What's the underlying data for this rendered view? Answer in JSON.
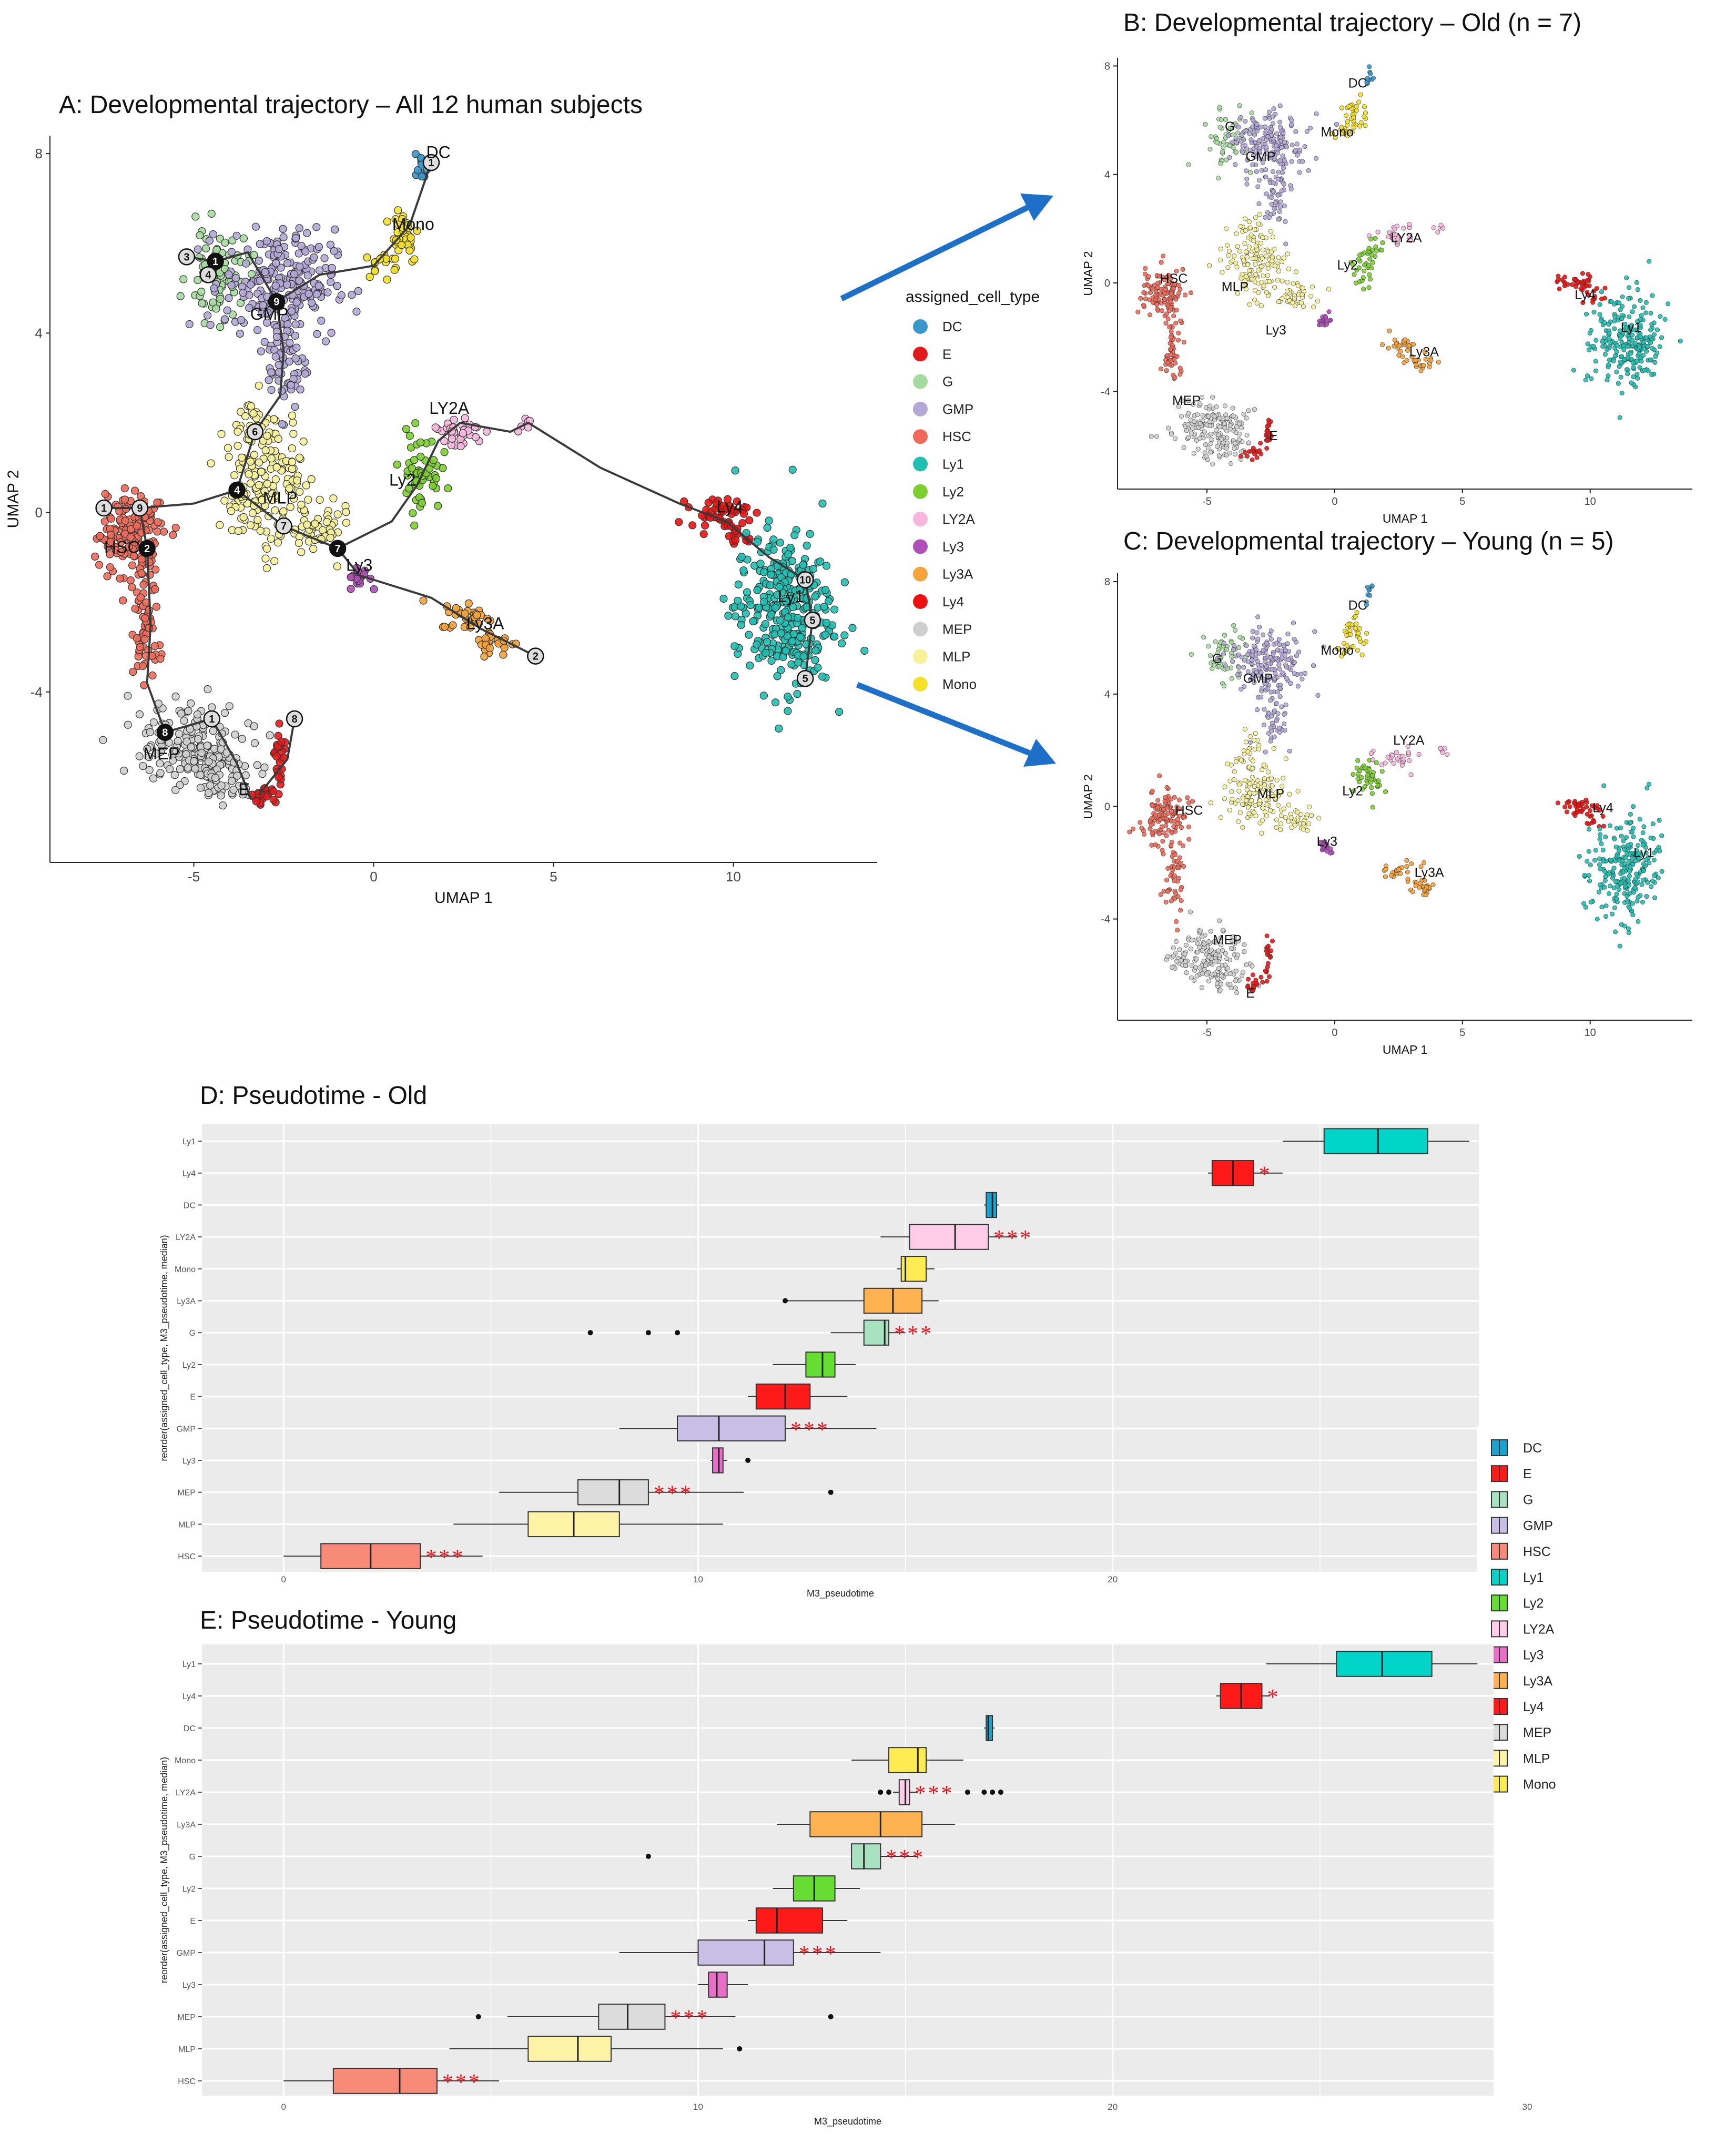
{
  "colors": {
    "DC": "#3a97c9",
    "E": "#e31a1c",
    "G": "#a6dba0",
    "GMP": "#b3a8d6",
    "HSC": "#ef6a5a",
    "Ly1": "#21bfb2",
    "Ly2": "#7ccf2e",
    "LY2A": "#f7b6dd",
    "Ly3": "#b04fb8",
    "Ly3A": "#f5a33b",
    "Ly4": "#ee1111",
    "MEP": "#cfcfcf",
    "MLP": "#f7f29a",
    "Mono": "#f5e02a"
  },
  "box_colors": {
    "DC": "#1aa3d0",
    "E": "#ff1a1a",
    "G": "#a8e2c0",
    "GMP": "#c9bfe6",
    "HSC": "#f88a7a",
    "Ly1": "#00d4c8",
    "Ly2": "#66dd33",
    "LY2A": "#ffcde8",
    "Ly3": "#e86ec8",
    "Ly3A": "#ffb252",
    "Ly4": "#ff1a1a",
    "MEP": "#dcdcdc",
    "MLP": "#fff3a8",
    "Mono": "#ffec52"
  },
  "chart_data": [
    {
      "id": "A",
      "type": "scatter",
      "title": "A: Developmental trajectory – All 12 human subjects",
      "xlabel": "UMAP 1",
      "ylabel": "UMAP 2",
      "xlim": [
        -9,
        14
      ],
      "ylim": [
        -7.8,
        8.4
      ],
      "xticks": [
        -5,
        0,
        5,
        10
      ],
      "yticks": [
        -4,
        0,
        4,
        8
      ],
      "legend_title": "assigned_cell_type",
      "legend": [
        "DC",
        "E",
        "G",
        "GMP",
        "HSC",
        "Ly1",
        "Ly2",
        "LY2A",
        "Ly3",
        "Ly3A",
        "Ly4",
        "MEP",
        "MLP",
        "Mono"
      ],
      "cluster_labels": [
        {
          "text": "DC",
          "x": 1.8,
          "y": 7.9
        },
        {
          "text": "Mono",
          "x": 1.1,
          "y": 6.3
        },
        {
          "text": "GMP",
          "x": -2.9,
          "y": 4.3
        },
        {
          "text": "LY2A",
          "x": 2.1,
          "y": 2.2
        },
        {
          "text": "Ly2",
          "x": 0.8,
          "y": 0.6
        },
        {
          "text": "MLP",
          "x": -2.6,
          "y": 0.2
        },
        {
          "text": "Ly4",
          "x": 9.9,
          "y": 0.0
        },
        {
          "text": "Ly3",
          "x": -0.4,
          "y": -1.3
        },
        {
          "text": "Ly3A",
          "x": 3.1,
          "y": -2.6
        },
        {
          "text": "Ly1",
          "x": 11.6,
          "y": -2.0
        },
        {
          "text": "HSC",
          "x": -7.0,
          "y": -0.9
        },
        {
          "text": "MEP",
          "x": -5.9,
          "y": -5.5
        },
        {
          "text": "E",
          "x": -3.6,
          "y": -6.3
        }
      ],
      "trajectory_nodes": [
        {
          "label": "1",
          "x": -4.4,
          "y": 5.6,
          "filled": true
        },
        {
          "label": "3",
          "x": -5.2,
          "y": 5.7,
          "filled": false
        },
        {
          "label": "9",
          "x": -2.7,
          "y": 4.7,
          "filled": true
        },
        {
          "label": "4",
          "x": -4.6,
          "y": 5.3,
          "filled": false
        },
        {
          "label": "6",
          "x": -3.3,
          "y": 1.8,
          "filled": false
        },
        {
          "label": "4",
          "x": -3.8,
          "y": 0.5,
          "filled": true
        },
        {
          "label": "7",
          "x": -2.5,
          "y": -0.3,
          "filled": false
        },
        {
          "label": "7",
          "x": -1.0,
          "y": -0.8,
          "filled": true
        },
        {
          "label": "1",
          "x": -7.5,
          "y": 0.1,
          "filled": false
        },
        {
          "label": "9",
          "x": -6.5,
          "y": 0.1,
          "filled": false
        },
        {
          "label": "2",
          "x": -6.3,
          "y": -0.8,
          "filled": true
        },
        {
          "label": "10",
          "x": 12.0,
          "y": -1.5,
          "filled": false
        },
        {
          "label": "5",
          "x": 12.2,
          "y": -2.4,
          "filled": false
        },
        {
          "label": "5",
          "x": 12.0,
          "y": -3.7,
          "filled": false
        },
        {
          "label": "2",
          "x": 4.5,
          "y": -3.2,
          "filled": false
        },
        {
          "label": "1",
          "x": -4.5,
          "y": -4.6,
          "filled": false
        },
        {
          "label": "8",
          "x": -5.8,
          "y": -4.9,
          "filled": true
        },
        {
          "label": "8",
          "x": -2.2,
          "y": -4.6,
          "filled": false
        },
        {
          "label": "1",
          "x": 1.6,
          "y": 7.8,
          "filled": false
        }
      ]
    },
    {
      "id": "B",
      "type": "scatter",
      "title": "B: Developmental trajectory – Old (n = 7)",
      "xlabel": "UMAP 1",
      "ylabel": "UMAP 2",
      "xlim": [
        -8.5,
        14
      ],
      "ylim": [
        -7.6,
        8.3
      ],
      "xticks": [
        -5,
        0,
        5,
        10
      ],
      "yticks": [
        -4,
        0,
        4,
        8
      ],
      "cluster_labels": [
        {
          "text": "DC",
          "x": 0.9,
          "y": 7.2
        },
        {
          "text": "Mono",
          "x": 0.1,
          "y": 5.4
        },
        {
          "text": "G",
          "x": -4.1,
          "y": 5.6
        },
        {
          "text": "GMP",
          "x": -2.9,
          "y": 4.5
        },
        {
          "text": "LY2A",
          "x": 2.8,
          "y": 1.5
        },
        {
          "text": "Ly2",
          "x": 0.5,
          "y": 0.5
        },
        {
          "text": "HSC",
          "x": -6.3,
          "y": 0.0
        },
        {
          "text": "MLP",
          "x": -3.9,
          "y": -0.3
        },
        {
          "text": "Ly3",
          "x": -2.3,
          "y": -1.9
        },
        {
          "text": "Ly3A",
          "x": 3.5,
          "y": -2.7
        },
        {
          "text": "Ly4",
          "x": 9.8,
          "y": -0.6
        },
        {
          "text": "Ly1",
          "x": 11.6,
          "y": -1.8
        },
        {
          "text": "MEP",
          "x": -5.8,
          "y": -4.5
        },
        {
          "text": "E",
          "x": -2.4,
          "y": -5.8
        }
      ]
    },
    {
      "id": "C",
      "type": "scatter",
      "title": "C: Developmental trajectory – Young (n = 5)",
      "xlabel": "UMAP 1",
      "ylabel": "UMAP 2",
      "xlim": [
        -8.5,
        14
      ],
      "ylim": [
        -7.6,
        8.3
      ],
      "xticks": [
        -5,
        0,
        5,
        10
      ],
      "yticks": [
        -4,
        0,
        4,
        8
      ],
      "cluster_labels": [
        {
          "text": "DC",
          "x": 0.9,
          "y": 7.0
        },
        {
          "text": "Mono",
          "x": 0.1,
          "y": 5.4
        },
        {
          "text": "G",
          "x": -4.6,
          "y": 5.1
        },
        {
          "text": "GMP",
          "x": -3.0,
          "y": 4.4
        },
        {
          "text": "LY2A",
          "x": 2.9,
          "y": 2.2
        },
        {
          "text": "Ly2",
          "x": 0.7,
          "y": 0.4
        },
        {
          "text": "HSC",
          "x": -5.7,
          "y": -0.3
        },
        {
          "text": "MLP",
          "x": -2.5,
          "y": 0.3
        },
        {
          "text": "Ly3",
          "x": -0.3,
          "y": -1.4
        },
        {
          "text": "Ly3A",
          "x": 3.7,
          "y": -2.5
        },
        {
          "text": "Ly4",
          "x": 10.5,
          "y": -0.2
        },
        {
          "text": "Ly1",
          "x": 12.1,
          "y": -1.8
        },
        {
          "text": "MEP",
          "x": -4.2,
          "y": -4.9
        },
        {
          "text": "E",
          "x": -3.3,
          "y": -6.8
        }
      ]
    },
    {
      "id": "D",
      "type": "box",
      "title": "D: Pseudotime - Old",
      "xlabel": "M3_pseudotime",
      "ylabel": "reorder(assigned_cell_type, M3_pseudotime, median)",
      "xlim": [
        -1.5,
        30
      ],
      "xticks": [
        0,
        10,
        20
      ],
      "categories": [
        "Ly1",
        "Ly4",
        "DC",
        "LY2A",
        "Mono",
        "Ly3A",
        "G",
        "Ly2",
        "E",
        "GMP",
        "Ly3",
        "MEP",
        "MLP",
        "HSC"
      ],
      "boxes": [
        {
          "cat": "Ly1",
          "lo": 24.1,
          "q1": 25.1,
          "med": 26.4,
          "q3": 27.6,
          "hi": 28.6,
          "sig": ""
        },
        {
          "cat": "Ly4",
          "lo": 22.3,
          "q1": 22.4,
          "med": 22.9,
          "q3": 23.4,
          "hi": 24.1,
          "sig": "*"
        },
        {
          "cat": "DC",
          "lo": 16.9,
          "q1": 16.95,
          "med": 17.1,
          "q3": 17.2,
          "hi": 17.25,
          "sig": ""
        },
        {
          "cat": "LY2A",
          "lo": 14.4,
          "q1": 15.1,
          "med": 16.2,
          "q3": 17.0,
          "hi": 17.7,
          "sig": "***"
        },
        {
          "cat": "Mono",
          "lo": 14.8,
          "q1": 14.9,
          "med": 15.0,
          "q3": 15.5,
          "hi": 15.7,
          "sig": ""
        },
        {
          "cat": "Ly3A",
          "lo": 12.1,
          "q1": 14.0,
          "med": 14.7,
          "q3": 15.4,
          "hi": 15.8,
          "sig": ""
        },
        {
          "cat": "G",
          "lo": 13.2,
          "q1": 14.0,
          "med": 14.5,
          "q3": 14.6,
          "hi": 15.0,
          "sig": "***"
        },
        {
          "cat": "Ly2",
          "lo": 11.8,
          "q1": 12.6,
          "med": 13.0,
          "q3": 13.3,
          "hi": 13.8,
          "sig": ""
        },
        {
          "cat": "E",
          "lo": 11.2,
          "q1": 11.4,
          "med": 12.1,
          "q3": 12.7,
          "hi": 13.6,
          "sig": ""
        },
        {
          "cat": "GMP",
          "lo": 8.1,
          "q1": 9.5,
          "med": 10.5,
          "q3": 12.1,
          "hi": 14.3,
          "sig": "***"
        },
        {
          "cat": "Ly3",
          "lo": 10.3,
          "q1": 10.35,
          "med": 10.5,
          "q3": 10.6,
          "hi": 10.7,
          "sig": ""
        },
        {
          "cat": "MEP",
          "lo": 5.2,
          "q1": 7.1,
          "med": 8.1,
          "q3": 8.8,
          "hi": 11.1,
          "sig": "***"
        },
        {
          "cat": "MLP",
          "lo": 4.1,
          "q1": 5.9,
          "med": 7.0,
          "q3": 8.1,
          "hi": 10.6,
          "sig": ""
        },
        {
          "cat": "HSC",
          "lo": 0.0,
          "q1": 0.9,
          "med": 2.1,
          "q3": 3.3,
          "hi": 4.8,
          "sig": "***"
        }
      ],
      "outliers": [
        {
          "cat": "Ly3A",
          "x": 12.1
        },
        {
          "cat": "G",
          "x": 7.4
        },
        {
          "cat": "G",
          "x": 8.8
        },
        {
          "cat": "G",
          "x": 9.5
        },
        {
          "cat": "Ly3",
          "x": 11.2
        },
        {
          "cat": "MEP",
          "x": 13.2
        }
      ],
      "legend": [
        "DC",
        "E",
        "G",
        "GMP",
        "HSC",
        "Ly1",
        "Ly2",
        "LY2A",
        "Ly3",
        "Ly3A",
        "Ly4",
        "MEP",
        "MLP",
        "Mono"
      ]
    },
    {
      "id": "E",
      "type": "box",
      "title": "E: Pseudotime - Young",
      "xlabel": "M3_pseudotime",
      "ylabel": "reorder(assigned_cell_type, M3_pseudotime, median)",
      "xlim": [
        -1.5,
        30
      ],
      "xticks": [
        0,
        10,
        20,
        30
      ],
      "categories": [
        "Ly1",
        "Ly4",
        "DC",
        "Mono",
        "LY2A",
        "Ly3A",
        "G",
        "Ly2",
        "E",
        "GMP",
        "Ly3",
        "MEP",
        "MLP",
        "HSC"
      ],
      "boxes": [
        {
          "cat": "Ly1",
          "lo": 23.7,
          "q1": 25.4,
          "med": 26.5,
          "q3": 27.7,
          "hi": 28.8,
          "sig": ""
        },
        {
          "cat": "Ly4",
          "lo": 22.5,
          "q1": 22.6,
          "med": 23.1,
          "q3": 23.6,
          "hi": 23.8,
          "sig": "*"
        },
        {
          "cat": "DC",
          "lo": 16.9,
          "q1": 16.95,
          "med": 17.0,
          "q3": 17.1,
          "hi": 17.15,
          "sig": ""
        },
        {
          "cat": "Mono",
          "lo": 13.7,
          "q1": 14.6,
          "med": 15.3,
          "q3": 15.5,
          "hi": 16.4,
          "sig": ""
        },
        {
          "cat": "LY2A",
          "lo": 14.7,
          "q1": 14.85,
          "med": 15.0,
          "q3": 15.1,
          "hi": 15.3,
          "sig": "***"
        },
        {
          "cat": "Ly3A",
          "lo": 11.9,
          "q1": 12.7,
          "med": 14.4,
          "q3": 15.4,
          "hi": 16.2,
          "sig": ""
        },
        {
          "cat": "G",
          "lo": 13.7,
          "q1": 13.7,
          "med": 14.0,
          "q3": 14.4,
          "hi": 15.3,
          "sig": "***"
        },
        {
          "cat": "Ly2",
          "lo": 11.8,
          "q1": 12.3,
          "med": 12.8,
          "q3": 13.3,
          "hi": 13.9,
          "sig": ""
        },
        {
          "cat": "E",
          "lo": 11.2,
          "q1": 11.4,
          "med": 11.9,
          "q3": 13.0,
          "hi": 13.6,
          "sig": ""
        },
        {
          "cat": "GMP",
          "lo": 8.1,
          "q1": 10.0,
          "med": 11.6,
          "q3": 12.3,
          "hi": 14.4,
          "sig": "***"
        },
        {
          "cat": "Ly3",
          "lo": 10.0,
          "q1": 10.25,
          "med": 10.45,
          "q3": 10.7,
          "hi": 11.2,
          "sig": ""
        },
        {
          "cat": "MEP",
          "lo": 5.4,
          "q1": 7.6,
          "med": 8.3,
          "q3": 9.2,
          "hi": 10.9,
          "sig": "***"
        },
        {
          "cat": "MLP",
          "lo": 4.0,
          "q1": 5.9,
          "med": 7.1,
          "q3": 7.9,
          "hi": 10.6,
          "sig": ""
        },
        {
          "cat": "HSC",
          "lo": 0.0,
          "q1": 1.2,
          "med": 2.8,
          "q3": 3.7,
          "hi": 5.2,
          "sig": "***"
        }
      ],
      "outliers": [
        {
          "cat": "LY2A",
          "x": 14.4
        },
        {
          "cat": "LY2A",
          "x": 14.6
        },
        {
          "cat": "LY2A",
          "x": 16.5
        },
        {
          "cat": "LY2A",
          "x": 16.9
        },
        {
          "cat": "LY2A",
          "x": 17.1
        },
        {
          "cat": "LY2A",
          "x": 17.3
        },
        {
          "cat": "G",
          "x": 8.8
        },
        {
          "cat": "MEP",
          "x": 4.7
        },
        {
          "cat": "MEP",
          "x": 13.2
        },
        {
          "cat": "MLP",
          "x": 11.0
        }
      ]
    }
  ]
}
